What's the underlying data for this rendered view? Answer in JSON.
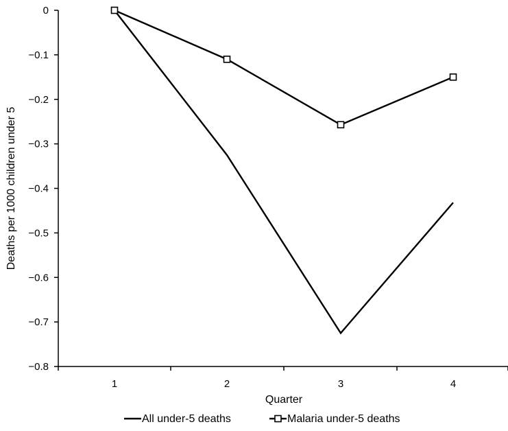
{
  "chart_data": {
    "type": "line",
    "title": "",
    "xlabel": "Quarter",
    "ylabel": "Deaths per 1000 children under 5",
    "categories": [
      "1",
      "2",
      "3",
      "4"
    ],
    "ylim": [
      -0.8,
      0
    ],
    "yticks": [
      0,
      -0.1,
      -0.2,
      -0.3,
      -0.4,
      -0.5,
      -0.6,
      -0.7,
      -0.8
    ],
    "ytick_labels": [
      "0",
      "−0.1",
      "−0.2",
      "−0.3",
      "−0.4",
      "−0.5",
      "−0.6",
      "−0.7",
      "−0.8"
    ],
    "grid": false,
    "legend_position": "bottom",
    "series": [
      {
        "name": "All under-5 deaths",
        "values": [
          0,
          -0.325,
          -0.725,
          -0.432
        ],
        "marker": "none",
        "color": "#000000"
      },
      {
        "name": "Malaria under-5 deaths",
        "values": [
          0,
          -0.11,
          -0.257,
          -0.15
        ],
        "marker": "square",
        "color": "#000000"
      }
    ]
  }
}
